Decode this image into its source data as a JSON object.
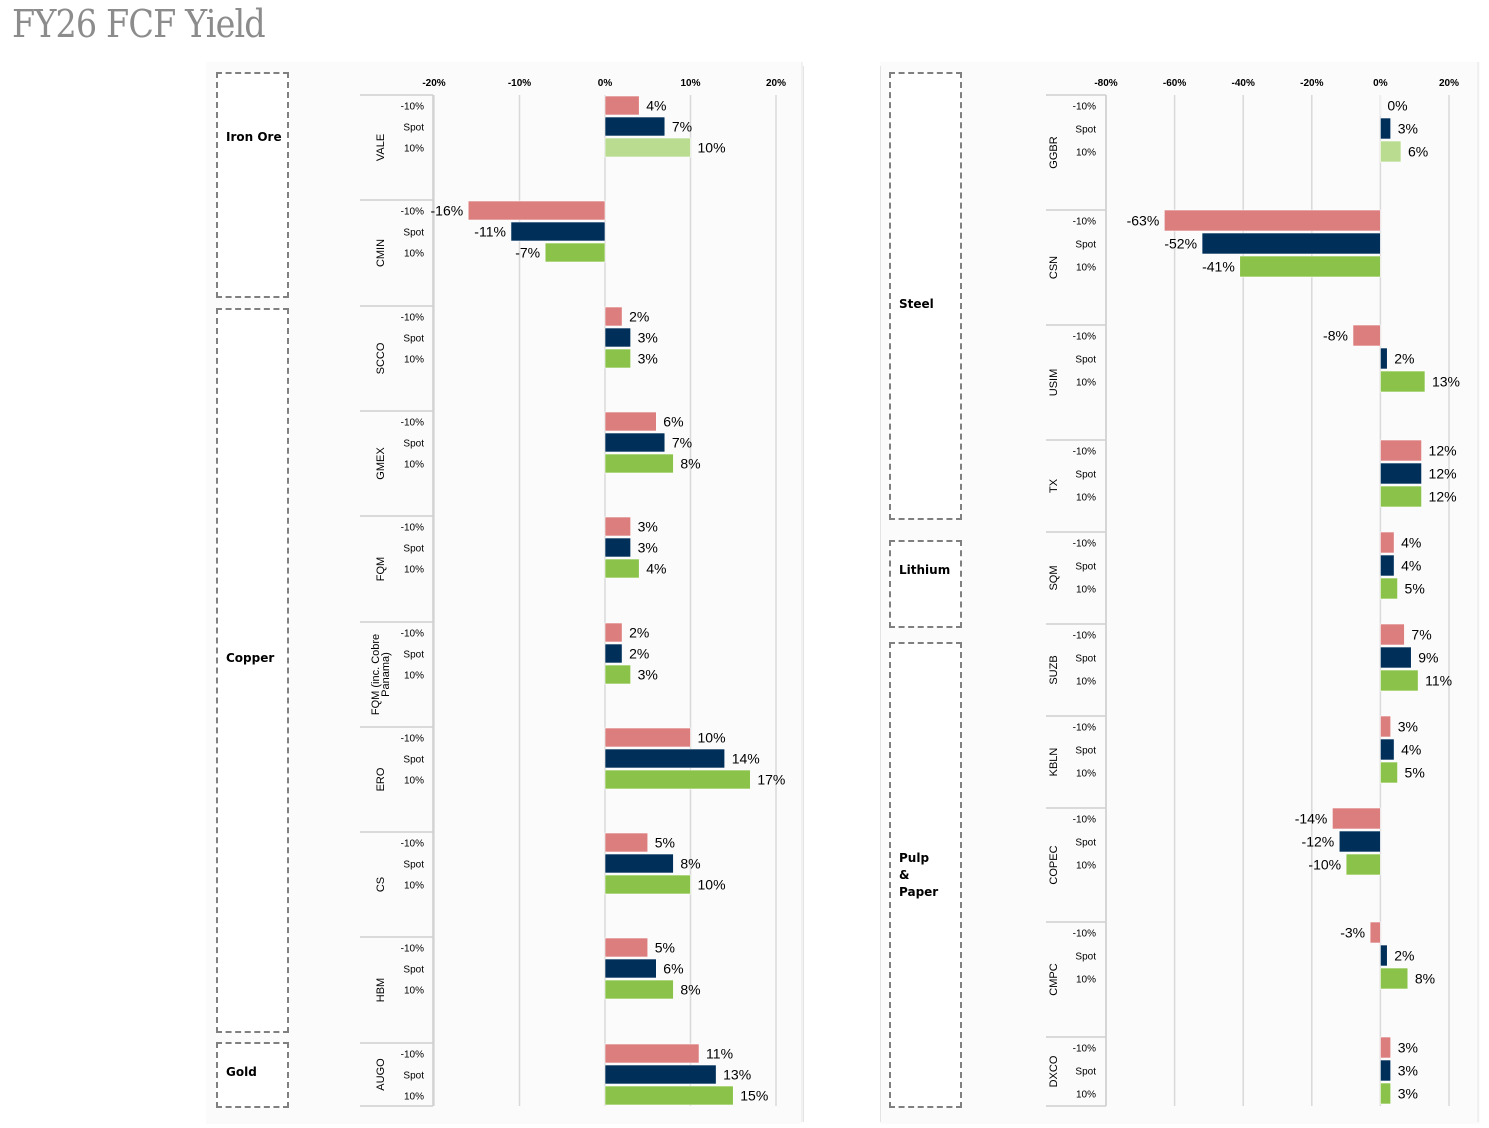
{
  "title": "FY26 FCF Yield",
  "colors": {
    "minus10": "#dc7e7e",
    "spot": "#00305a",
    "plus10": "#8bc34a",
    "plus10_light": "#b9dc90",
    "grid": "#d9d9d9"
  },
  "scenario_labels": [
    "-10%",
    "Spot",
    "10%"
  ],
  "sectors_left": [
    {
      "name": "Iron Ore"
    },
    {
      "name": "Copper"
    },
    {
      "name": "Gold"
    }
  ],
  "sectors_right": [
    {
      "name": "Steel"
    },
    {
      "name": "Lithium"
    },
    {
      "name": "Pulp\n&\nPaper"
    }
  ],
  "chart_data": [
    {
      "type": "bar",
      "orientation": "horizontal",
      "title": "FY26 FCF Yield",
      "xlim": [
        -20,
        20
      ],
      "xticks": [
        -20,
        -10,
        0,
        10,
        20
      ],
      "xtick_labels": [
        "-20%",
        "-10%",
        "0%",
        "10%",
        "20%"
      ],
      "grid": true,
      "series": [
        {
          "name": "-10%"
        },
        {
          "name": "Spot"
        },
        {
          "name": "10%"
        }
      ],
      "categories": [
        "VALE",
        "CMIN",
        "SCCO",
        "GMEX",
        "FQM",
        "FQM (inc. Cobre\nPanama)",
        "ERO",
        "CS",
        "HBM",
        "AUGO"
      ],
      "values": [
        [
          4,
          7,
          10
        ],
        [
          -16,
          -11,
          -7
        ],
        [
          2,
          3,
          3
        ],
        [
          6,
          7,
          8
        ],
        [
          3,
          3,
          4
        ],
        [
          2,
          2,
          3
        ],
        [
          10,
          14,
          17
        ],
        [
          5,
          8,
          10
        ],
        [
          5,
          6,
          8
        ],
        [
          11,
          13,
          15
        ]
      ],
      "labels": [
        [
          "4%",
          "7%",
          "10%"
        ],
        [
          "-16%",
          "-11%",
          "-7%"
        ],
        [
          "2%",
          "3%",
          "3%"
        ],
        [
          "6%",
          "7%",
          "8%"
        ],
        [
          "3%",
          "3%",
          "4%"
        ],
        [
          "2%",
          "2%",
          "3%"
        ],
        [
          "10%",
          "14%",
          "17%"
        ],
        [
          "5%",
          "8%",
          "10%"
        ],
        [
          "5%",
          "6%",
          "8%"
        ],
        [
          "11%",
          "13%",
          "15%"
        ]
      ]
    },
    {
      "type": "bar",
      "orientation": "horizontal",
      "xlim": [
        -80,
        20
      ],
      "xticks": [
        -80,
        -60,
        -40,
        -20,
        0,
        20
      ],
      "xtick_labels": [
        "-80%",
        "-60%",
        "-40%",
        "-20%",
        "0%",
        "20%"
      ],
      "grid": true,
      "series": [
        {
          "name": "-10%"
        },
        {
          "name": "Spot"
        },
        {
          "name": "10%"
        }
      ],
      "categories": [
        "GGBR",
        "CSN",
        "USIM",
        "TX",
        "SQM",
        "SUZB",
        "KBLN",
        "COPEC",
        "CMPC",
        "DXCO"
      ],
      "values": [
        [
          0,
          3,
          6
        ],
        [
          -63,
          -52,
          -41
        ],
        [
          -8,
          2,
          13
        ],
        [
          12,
          12,
          12
        ],
        [
          4,
          4,
          5
        ],
        [
          7,
          9,
          11
        ],
        [
          3,
          4,
          5
        ],
        [
          -14,
          -12,
          -10
        ],
        [
          -3,
          2,
          8
        ],
        [
          3,
          3,
          3
        ]
      ],
      "labels": [
        [
          "0%",
          "3%",
          "6%"
        ],
        [
          "-63%",
          "-52%",
          "-41%"
        ],
        [
          "-8%",
          "2%",
          "13%"
        ],
        [
          "12%",
          "12%",
          "12%"
        ],
        [
          "4%",
          "4%",
          "5%"
        ],
        [
          "7%",
          "9%",
          "11%"
        ],
        [
          "3%",
          "4%",
          "5%"
        ],
        [
          "-14%",
          "-12%",
          "-10%"
        ],
        [
          "-3%",
          "2%",
          "8%"
        ],
        [
          "3%",
          "3%",
          "3%"
        ]
      ]
    }
  ]
}
